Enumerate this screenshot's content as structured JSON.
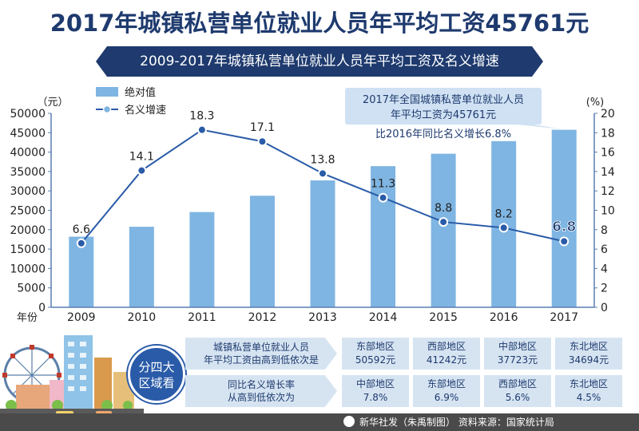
{
  "title": "2017年城镇私营单位就业人员年平均工资45761元",
  "subtitle": "2009-2017年城镇私营单位就业人员年平均工资及名义增速",
  "chart_data": {
    "type": "bar",
    "title": "2009-2017年城镇私营单位就业人员年平均工资及名义增速",
    "categories": [
      "2009",
      "2010",
      "2011",
      "2012",
      "2013",
      "2014",
      "2015",
      "2016",
      "2017"
    ],
    "xlabel": "年份",
    "ylabel_left": "（元）",
    "ylabel_right": "(%)",
    "ylim_left": [
      0,
      50000
    ],
    "ylim_right": [
      0,
      20
    ],
    "yticks_left": [
      "0",
      "5000",
      "10000",
      "15000",
      "20000",
      "25000",
      "30000",
      "35000",
      "40000",
      "45000",
      "50000"
    ],
    "yticks_right": [
      "0",
      "2",
      "4",
      "6",
      "8",
      "10",
      "12",
      "14",
      "16",
      "18",
      "20"
    ],
    "series": [
      {
        "name": "绝对值",
        "type": "bar",
        "axis": "left",
        "values": [
          18199,
          20759,
          24556,
          28752,
          32706,
          36390,
          39589,
          42833,
          45761
        ]
      },
      {
        "name": "名义增速",
        "type": "line",
        "axis": "right",
        "values": [
          6.6,
          14.1,
          18.3,
          17.1,
          13.8,
          11.3,
          8.8,
          8.2,
          6.8
        ]
      }
    ],
    "point_labels": [
      "6.6",
      "14.1",
      "18.3",
      "17.1",
      "13.8",
      "11.3",
      "8.8",
      "8.2",
      "6.8"
    ],
    "legend": [
      "绝对值",
      "名义增速"
    ],
    "annotation_line1": "2017年全国城镇私营单位就业人员",
    "annotation_line2": "年平均工资为45761元",
    "annotation_note": "比2016年同比名义增长6.8%"
  },
  "regions": {
    "circle_line1": "分四大",
    "circle_line2": "区域看",
    "row1_label_line1": "城镇私营单位就业人员",
    "row1_label_line2": "年平均工资由高到低依次是",
    "row1": [
      {
        "name": "东部地区",
        "value": "50592元"
      },
      {
        "name": "西部地区",
        "value": "41242元"
      },
      {
        "name": "中部地区",
        "value": "37723元"
      },
      {
        "name": "东北地区",
        "value": "34694元"
      }
    ],
    "row2_label_line1": "同比名义增长率",
    "row2_label_line2": "从高到低依次为",
    "row2": [
      {
        "name": "中部地区",
        "value": "7.8%"
      },
      {
        "name": "东部地区",
        "value": "6.9%"
      },
      {
        "name": "西部地区",
        "value": "5.6%"
      },
      {
        "name": "东北地区",
        "value": "4.5%"
      }
    ]
  },
  "footer": "新华社发（朱禹制图） 资料来源：国家统计局",
  "colors": {
    "bar": "#7fb5e2",
    "line": "#2a5ba8",
    "title": "#1e3a6e",
    "banner": "#1e3a6e",
    "panel": "#d6e4f2"
  }
}
